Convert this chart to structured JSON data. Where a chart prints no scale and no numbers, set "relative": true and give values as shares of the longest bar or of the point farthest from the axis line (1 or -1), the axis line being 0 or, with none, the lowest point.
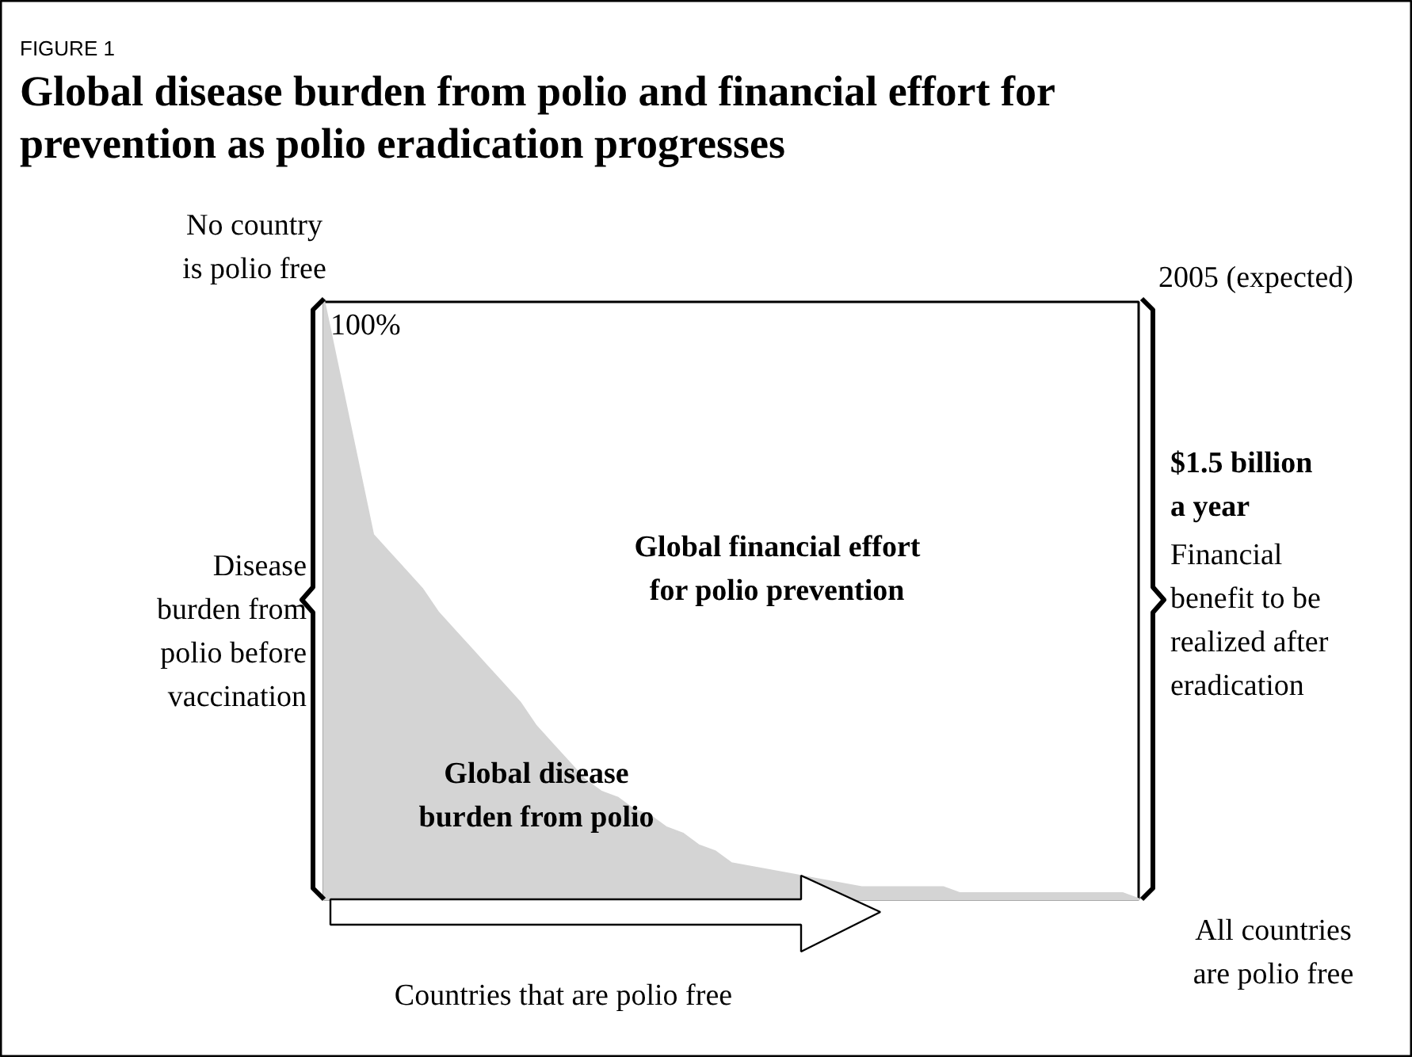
{
  "chart_data": {
    "type": "area",
    "title": "Global disease burden from polio and financial effort for prevention as polio eradication progresses",
    "relative": true,
    "tick_labels": false,
    "grid": false,
    "legend": false,
    "categories": [
      null,
      null,
      null,
      null,
      null,
      null,
      null,
      null,
      null,
      null,
      null,
      null,
      null,
      null,
      null,
      null,
      null,
      null,
      null,
      null,
      null,
      null,
      null,
      null,
      null,
      null,
      null,
      null,
      null,
      null,
      null,
      null,
      null,
      null,
      null,
      null,
      null,
      null,
      null,
      null,
      null,
      null,
      null,
      null,
      null,
      null,
      null,
      null,
      null,
      null,
      null
    ],
    "series": [
      {
        "name": "Global disease\nburden from polio",
        "color": "#d4d4d4",
        "values": [
          1,
          0.87,
          0.74,
          0.61,
          0.58,
          0.55,
          0.52,
          0.48,
          0.45,
          0.42,
          0.39,
          0.36,
          0.33,
          0.29,
          0.26,
          0.23,
          0.2,
          0.18,
          0.17,
          0.15,
          0.14,
          0.12,
          0.11,
          0.09,
          0.08,
          0.06,
          0.055,
          0.05,
          0.045,
          0.04,
          0.035,
          0.03,
          0.025,
          0.02,
          0.02,
          0.02,
          0.02,
          0.02,
          0.02,
          0.01,
          0.01,
          0.01,
          0.01,
          0.01,
          0.01,
          0.01,
          0.01,
          0.01,
          0.01,
          0.01,
          0
        ]
      }
    ],
    "annotations": [
      "FIGURE 1",
      "No country\nis polio free",
      "2005 (expected)",
      "100%",
      "Disease\nburden from\npolio before\nvaccination",
      "Global financial effort\nfor polio prevention",
      "$1.5 billion\na year",
      "Financial\nbenefit to be\nrealized after\neradication",
      "All countries\nare polio free",
      "Countries that are polio free"
    ]
  }
}
